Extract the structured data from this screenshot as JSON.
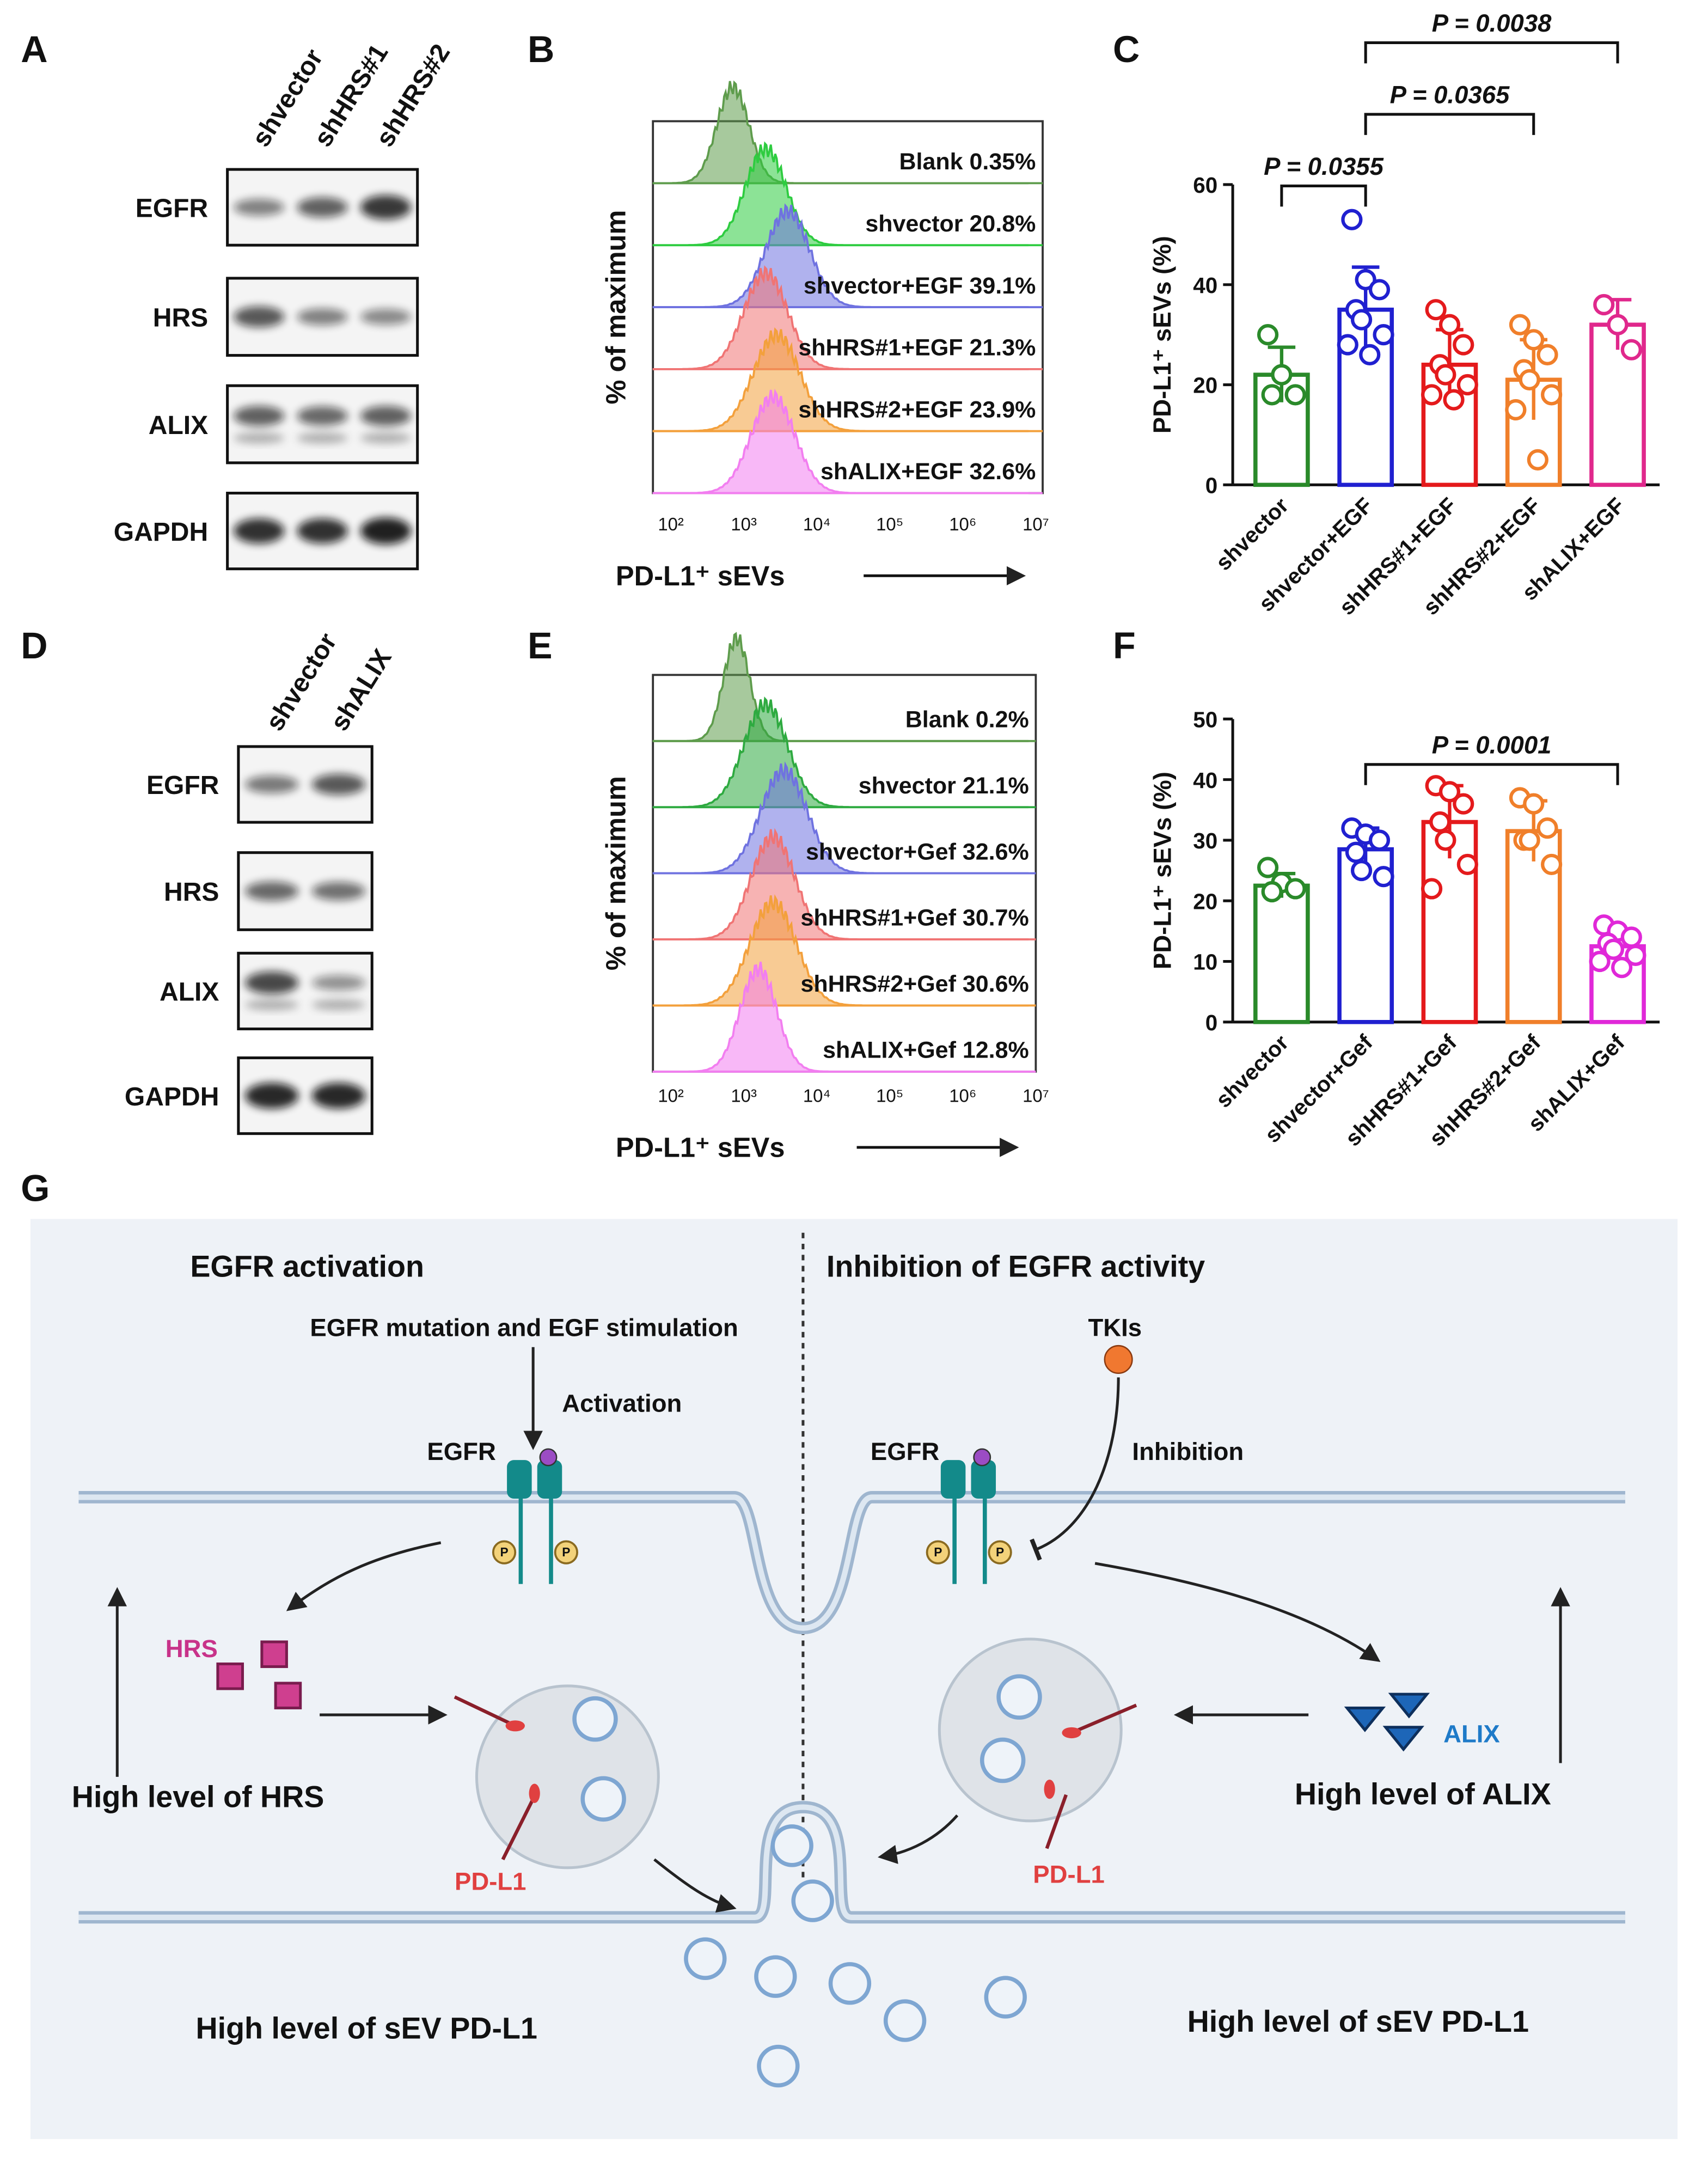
{
  "panels": {
    "letters": [
      "A",
      "B",
      "C",
      "D",
      "E",
      "F",
      "G"
    ]
  },
  "blot_a": {
    "lanes": [
      "shvector",
      "shHRS#1",
      "shHRS#2"
    ],
    "proteins": [
      "EGFR",
      "HRS",
      "ALIX",
      "GAPDH"
    ]
  },
  "blot_d": {
    "lanes": [
      "shvector",
      "shALIX"
    ],
    "proteins": [
      "EGFR",
      "HRS",
      "ALIX",
      "GAPDH"
    ]
  },
  "flow_b": {
    "ylabel": "% of maximum",
    "xlabel": "PD-L1⁺ sEVs",
    "xticks": [
      "10²",
      "10³",
      "10⁴",
      "10⁵",
      "10⁶",
      "10⁷"
    ],
    "samples": [
      {
        "label": "Blank 0.35%",
        "color": "#5e9c4c"
      },
      {
        "label": "shvector 20.8%",
        "color": "#2ecc40"
      },
      {
        "label": "shvector+EGF 39.1%",
        "color": "#6f72e0"
      },
      {
        "label": "shHRS#1+EGF 21.3%",
        "color": "#f07474"
      },
      {
        "label": "shHRS#2+EGF 23.9%",
        "color": "#f3a03c"
      },
      {
        "label": "shALIX+EGF 32.6%",
        "color": "#f27ef0"
      }
    ]
  },
  "flow_e": {
    "ylabel": "% of maximum",
    "xlabel": "PD-L1⁺ sEVs",
    "xticks": [
      "10²",
      "10³",
      "10⁴",
      "10⁵",
      "10⁶",
      "10⁷"
    ],
    "samples": [
      {
        "label": "Blank 0.2%",
        "color": "#5e9c4c"
      },
      {
        "label": "shvector 21.1%",
        "color": "#2eaa40"
      },
      {
        "label": "shvector+Gef 32.6%",
        "color": "#6f72e0"
      },
      {
        "label": "shHRS#1+Gef 30.7%",
        "color": "#f07474"
      },
      {
        "label": "shHRS#2+Gef 30.6%",
        "color": "#f3a03c"
      },
      {
        "label": "shALIX+Gef 12.8%",
        "color": "#f27ef0"
      }
    ]
  },
  "chart_data": [
    {
      "type": "bar",
      "ylabel": "PD-L1⁺ sEVs (%)",
      "categories": [
        "shvector",
        "shvector+EGF",
        "shHRS#1+EGF",
        "shHRS#2+EGF",
        "shALIX+EGF"
      ],
      "values": [
        22,
        35,
        24,
        21,
        32
      ],
      "errors": [
        5.5,
        8.5,
        7,
        8,
        5
      ],
      "points": [
        [
          30,
          22,
          18,
          18
        ],
        [
          53,
          41,
          39,
          35,
          33,
          30,
          28,
          26
        ],
        [
          35,
          32,
          28,
          24,
          22,
          20,
          18,
          17
        ],
        [
          32,
          29,
          26,
          23,
          21,
          18,
          15,
          5
        ],
        [
          36,
          32,
          27
        ]
      ],
      "colors": [
        "#2a8a2a",
        "#2020d0",
        "#e41a1c",
        "#f07f2a",
        "#e0288c"
      ],
      "ylim": [
        0,
        60
      ],
      "yticks": [
        0,
        20,
        40,
        60
      ],
      "annotations": [
        {
          "text": "P = 0.0355",
          "from": 0,
          "to": 1
        },
        {
          "text": "P = 0.0365",
          "from": 1,
          "to": 3
        },
        {
          "text": "P = 0.0038",
          "from": 1,
          "to": 4
        }
      ]
    },
    {
      "type": "bar",
      "ylabel": "PD-L1⁺ sEVs (%)",
      "categories": [
        "shvector",
        "shvector+Gef",
        "shHRS#1+Gef",
        "shHRS#2+Gef",
        "shALIX+Gef"
      ],
      "values": [
        22.5,
        28.5,
        33,
        31.5,
        12.5
      ],
      "errors": [
        2,
        3.5,
        6,
        5,
        2.5
      ],
      "points": [
        [
          25.5,
          23,
          22,
          21.5
        ],
        [
          32,
          31,
          30,
          28,
          25,
          24
        ],
        [
          39,
          38,
          36,
          33,
          30,
          26,
          22
        ],
        [
          37,
          36,
          32,
          30,
          30,
          26
        ],
        [
          16,
          15,
          14,
          13,
          12,
          11,
          10,
          9
        ]
      ],
      "colors": [
        "#2a8a2a",
        "#2020d0",
        "#e41a1c",
        "#f07f2a",
        "#e028d8"
      ],
      "ylim": [
        0,
        50
      ],
      "yticks": [
        0,
        10,
        20,
        30,
        40,
        50
      ],
      "annotations": [
        {
          "text": "P = 0.0001",
          "from": 1,
          "to": 4
        }
      ]
    }
  ],
  "diagram": {
    "left_title": "EGFR activation",
    "right_title": "Inhibition of EGFR activity",
    "stimulus": "EGFR mutation and EGF stimulation",
    "activation": "Activation",
    "egfr_left": "EGFR",
    "egfr_right": "EGFR",
    "tkis": "TKIs",
    "inhibition": "Inhibition",
    "hrs": "HRS",
    "hrs_level": "High level of HRS",
    "alix": "ALIX",
    "alix_level": "High level of ALIX",
    "pdl1_left": "PD-L1",
    "pdl1_right": "PD-L1",
    "sev_left": "High level of sEV PD-L1",
    "sev_right": "High level of sEV PD-L1",
    "phospho": [
      "P",
      "P",
      "P",
      "P"
    ]
  }
}
